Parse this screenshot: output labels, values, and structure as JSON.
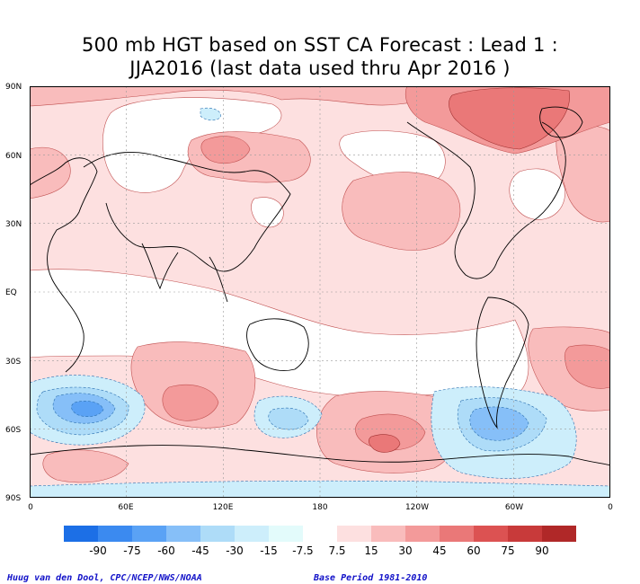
{
  "title": {
    "line1": "500 mb HGT based on SST CA Forecast : Lead 1 :",
    "line2": "JJA2016 (last data used thru Apr 2016 )"
  },
  "axes": {
    "lat_labels": [
      "90N",
      "60N",
      "30N",
      "EQ",
      "30S",
      "60S",
      "90S"
    ],
    "lon_labels": [
      "0",
      "60E",
      "120E",
      "180",
      "120W",
      "60W",
      "0"
    ]
  },
  "legend": {
    "labels": [
      "-90",
      "-75",
      "-60",
      "-45",
      "-30",
      "-15",
      "-7.5",
      "7.5",
      "15",
      "30",
      "45",
      "60",
      "75",
      "90"
    ],
    "colors": [
      "#1c6fe6",
      "#3b8af0",
      "#5aa2f5",
      "#86bff8",
      "#aedcf8",
      "#cdeefb",
      "#e3fbfb",
      "#ffffff",
      "#fde0e0",
      "#f9bcbc",
      "#f39a9a",
      "#ea7878",
      "#dc5252",
      "#c83a3a",
      "#b02828"
    ]
  },
  "footer": {
    "credit": "Huug van den Dool, CPC/NCEP/NWS/NOAA",
    "base_period": "Base Period 1981-2010"
  }
}
